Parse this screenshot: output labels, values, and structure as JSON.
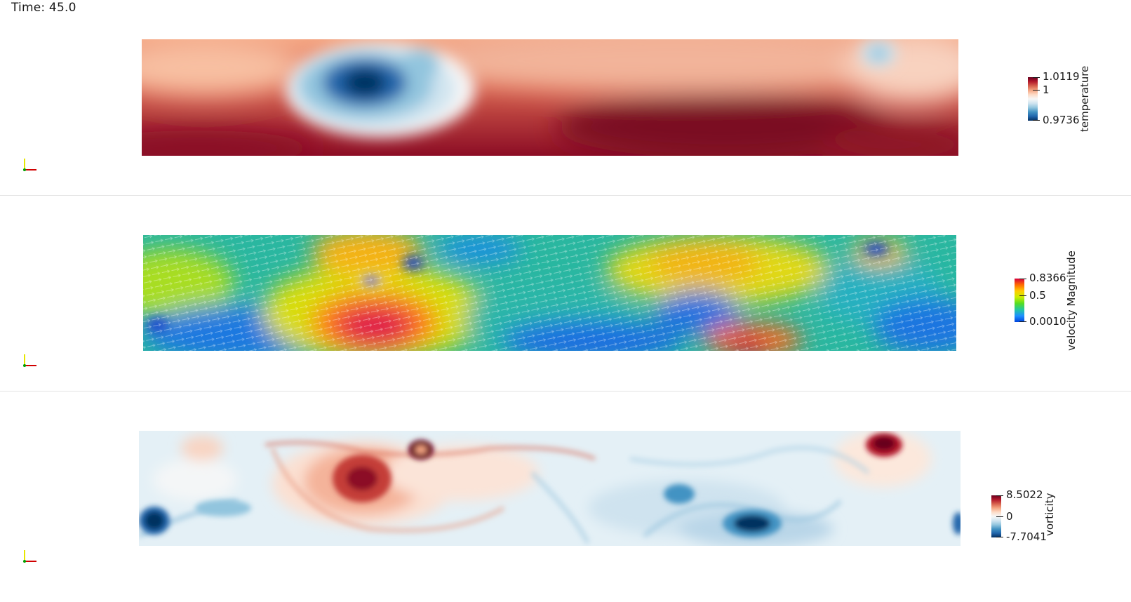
{
  "time_label": "Time: 45.0",
  "panels": [
    {
      "name": "temperature",
      "colorbar": {
        "title": "temperature",
        "ticks": [
          "1.0119",
          "1",
          "0.9736"
        ],
        "colors": [
          "#67001f",
          "#b2182b",
          "#d6604d",
          "#f4a582",
          "#fddbc7",
          "#f7f7f7",
          "#d1e5f0",
          "#92c5de",
          "#4393c3",
          "#2166ac",
          "#053061"
        ]
      }
    },
    {
      "name": "velocity",
      "colorbar": {
        "title": "velocity Magnitude",
        "ticks": [
          "0.8366",
          "0.5",
          "0.0010"
        ],
        "colors": [
          "#d6003c",
          "#ff6a00",
          "#ffcc00",
          "#ccee00",
          "#55dd22",
          "#22c8a0",
          "#1e90ff",
          "#0044dd"
        ]
      }
    },
    {
      "name": "vorticity",
      "colorbar": {
        "title": "vorticity",
        "ticks": [
          "8.5022",
          "0",
          "-7.7041"
        ],
        "colors": [
          "#67001f",
          "#b2182b",
          "#d6604d",
          "#f4a582",
          "#fddbc7",
          "#f7f7f7",
          "#d1e5f0",
          "#92c5de",
          "#4393c3",
          "#2166ac",
          "#053061"
        ]
      }
    }
  ]
}
